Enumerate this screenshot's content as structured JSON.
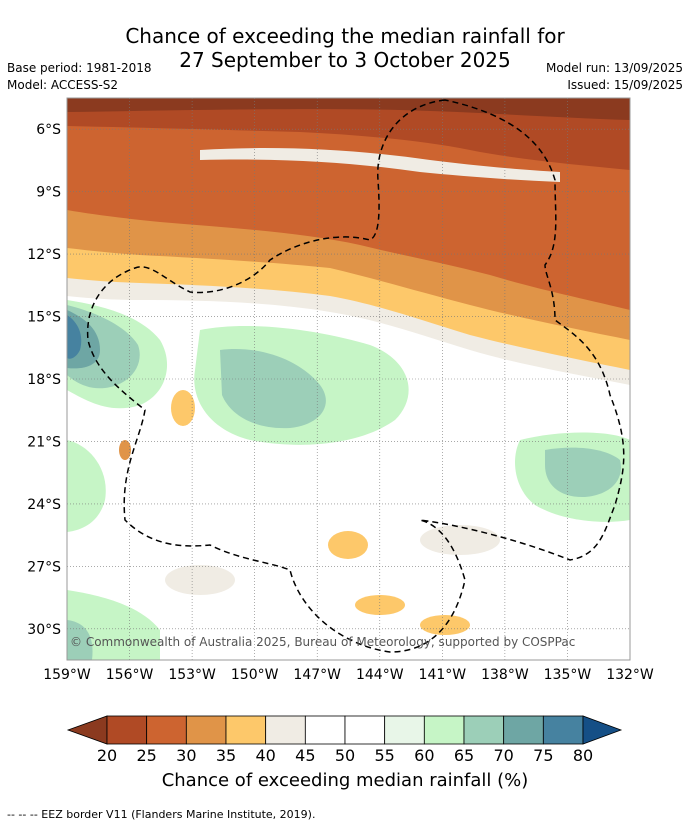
{
  "header": {
    "title_line1": "Chance of exceeding the median rainfall for",
    "title_line2": "27 September to 3 October 2025",
    "base_period": "Base period: 1981-2018",
    "model": "Model: ACCESS-S2",
    "model_run": "Model run: 13/09/2025",
    "issued": "Issued: 15/09/2025"
  },
  "map": {
    "lat_labels": [
      "6°S",
      "9°S",
      "12°S",
      "15°S",
      "18°S",
      "21°S",
      "24°S",
      "27°S",
      "30°S"
    ],
    "lon_labels": [
      "159°W",
      "156°W",
      "153°W",
      "150°W",
      "147°W",
      "144°W",
      "141°W",
      "138°W",
      "135°W",
      "132°W"
    ],
    "lat_values": [
      -6,
      -9,
      -12,
      -15,
      -18,
      -21,
      -24,
      -27,
      -30
    ],
    "lon_values": [
      -159,
      -156,
      -153,
      -150,
      -147,
      -144,
      -141,
      -138,
      -135,
      -132
    ],
    "lat_range": [
      -31.5,
      -4.5
    ],
    "lon_range": [
      -159,
      -132
    ],
    "copyright": "© Commonwealth of Australia 2025, Bureau of Meteorology, supported by COSPPac"
  },
  "colorbar": {
    "title": "Chance of exceeding median rainfall (%)",
    "ticks": [
      "20",
      "25",
      "30",
      "35",
      "40",
      "45",
      "50",
      "55",
      "60",
      "65",
      "70",
      "75",
      "80"
    ],
    "colors": [
      "#8b3a1f",
      "#b04a25",
      "#cd6430",
      "#e09448",
      "#fdc86a",
      "#f0ece4",
      "#ffffff",
      "#ffffff",
      "#e8f6e8",
      "#c6f5c6",
      "#9ccfb8",
      "#6ea6a4",
      "#4682a0",
      "#154f86"
    ]
  },
  "footer": {
    "eez_note": "--  --  -- EEZ border V11 (Flanders Marine Institute, 2019)."
  }
}
